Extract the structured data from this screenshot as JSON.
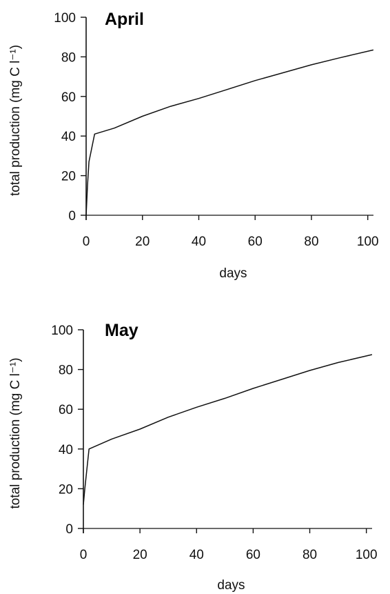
{
  "chart_data": [
    {
      "type": "line",
      "title": "April",
      "xlabel": "days",
      "ylabel": "total production (mg C l⁻¹)",
      "xlim": [
        0,
        103
      ],
      "ylim": [
        0,
        100
      ],
      "x_ticks": [
        0,
        20,
        40,
        60,
        80,
        100
      ],
      "y_ticks": [
        0,
        20,
        40,
        60,
        80,
        100
      ],
      "series": [
        {
          "x": [
            0,
            0.5,
            1,
            3,
            10,
            20,
            30,
            40,
            50,
            60,
            70,
            80,
            90,
            102
          ],
          "y": [
            0,
            15,
            27,
            41,
            44,
            50,
            55,
            59,
            63.5,
            68,
            72,
            76,
            79.5,
            83.5
          ]
        }
      ],
      "baseline": {
        "y": 0
      }
    },
    {
      "type": "line",
      "title": "May",
      "xlabel": "days",
      "ylabel": "total production (mg C l⁻¹)",
      "xlim": [
        0,
        103
      ],
      "ylim": [
        0,
        100
      ],
      "x_ticks": [
        0,
        20,
        40,
        60,
        80,
        100
      ],
      "y_ticks": [
        0,
        20,
        40,
        60,
        80,
        100
      ],
      "series": [
        {
          "x": [
            0,
            0.5,
            2,
            10,
            20,
            30,
            40,
            50,
            60,
            70,
            80,
            90,
            102
          ],
          "y": [
            12,
            20,
            40,
            45,
            50,
            56,
            61,
            65.5,
            70.5,
            75,
            79.5,
            83.5,
            87.5
          ]
        }
      ],
      "baseline": {
        "y": 0
      }
    }
  ]
}
